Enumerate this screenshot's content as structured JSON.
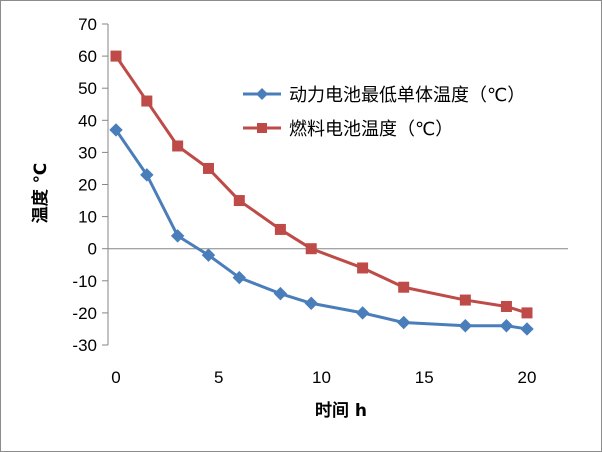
{
  "chart_data": {
    "type": "line",
    "title": "",
    "xlabel": "时间 h",
    "ylabel": "温度 ℃",
    "xlim": [
      0,
      20
    ],
    "ylim": [
      -30,
      70
    ],
    "xticks": [
      0,
      5,
      10,
      15,
      20
    ],
    "yticks": [
      70,
      60,
      50,
      40,
      30,
      20,
      10,
      0,
      -10,
      -20,
      -30
    ],
    "grid": false,
    "legend_position": "top-right",
    "series": [
      {
        "name": "动力电池最低单体温度（℃）",
        "color": "#4a7ebb",
        "marker": "diamond",
        "x": [
          0,
          1.5,
          3,
          4.5,
          6,
          8,
          9.5,
          12,
          14,
          17,
          19,
          20
        ],
        "y": [
          37,
          23,
          4,
          -2,
          -9,
          -14,
          -17,
          -20,
          -23,
          -24,
          -24,
          -25
        ]
      },
      {
        "name": "燃料电池温度（℃）",
        "color": "#be4b48",
        "marker": "square",
        "x": [
          0,
          1.5,
          3,
          4.5,
          6,
          8,
          9.5,
          12,
          14,
          17,
          19,
          20
        ],
        "y": [
          60,
          46,
          32,
          25,
          15,
          6,
          0,
          -6,
          -12,
          -16,
          -18,
          -20
        ]
      }
    ]
  }
}
